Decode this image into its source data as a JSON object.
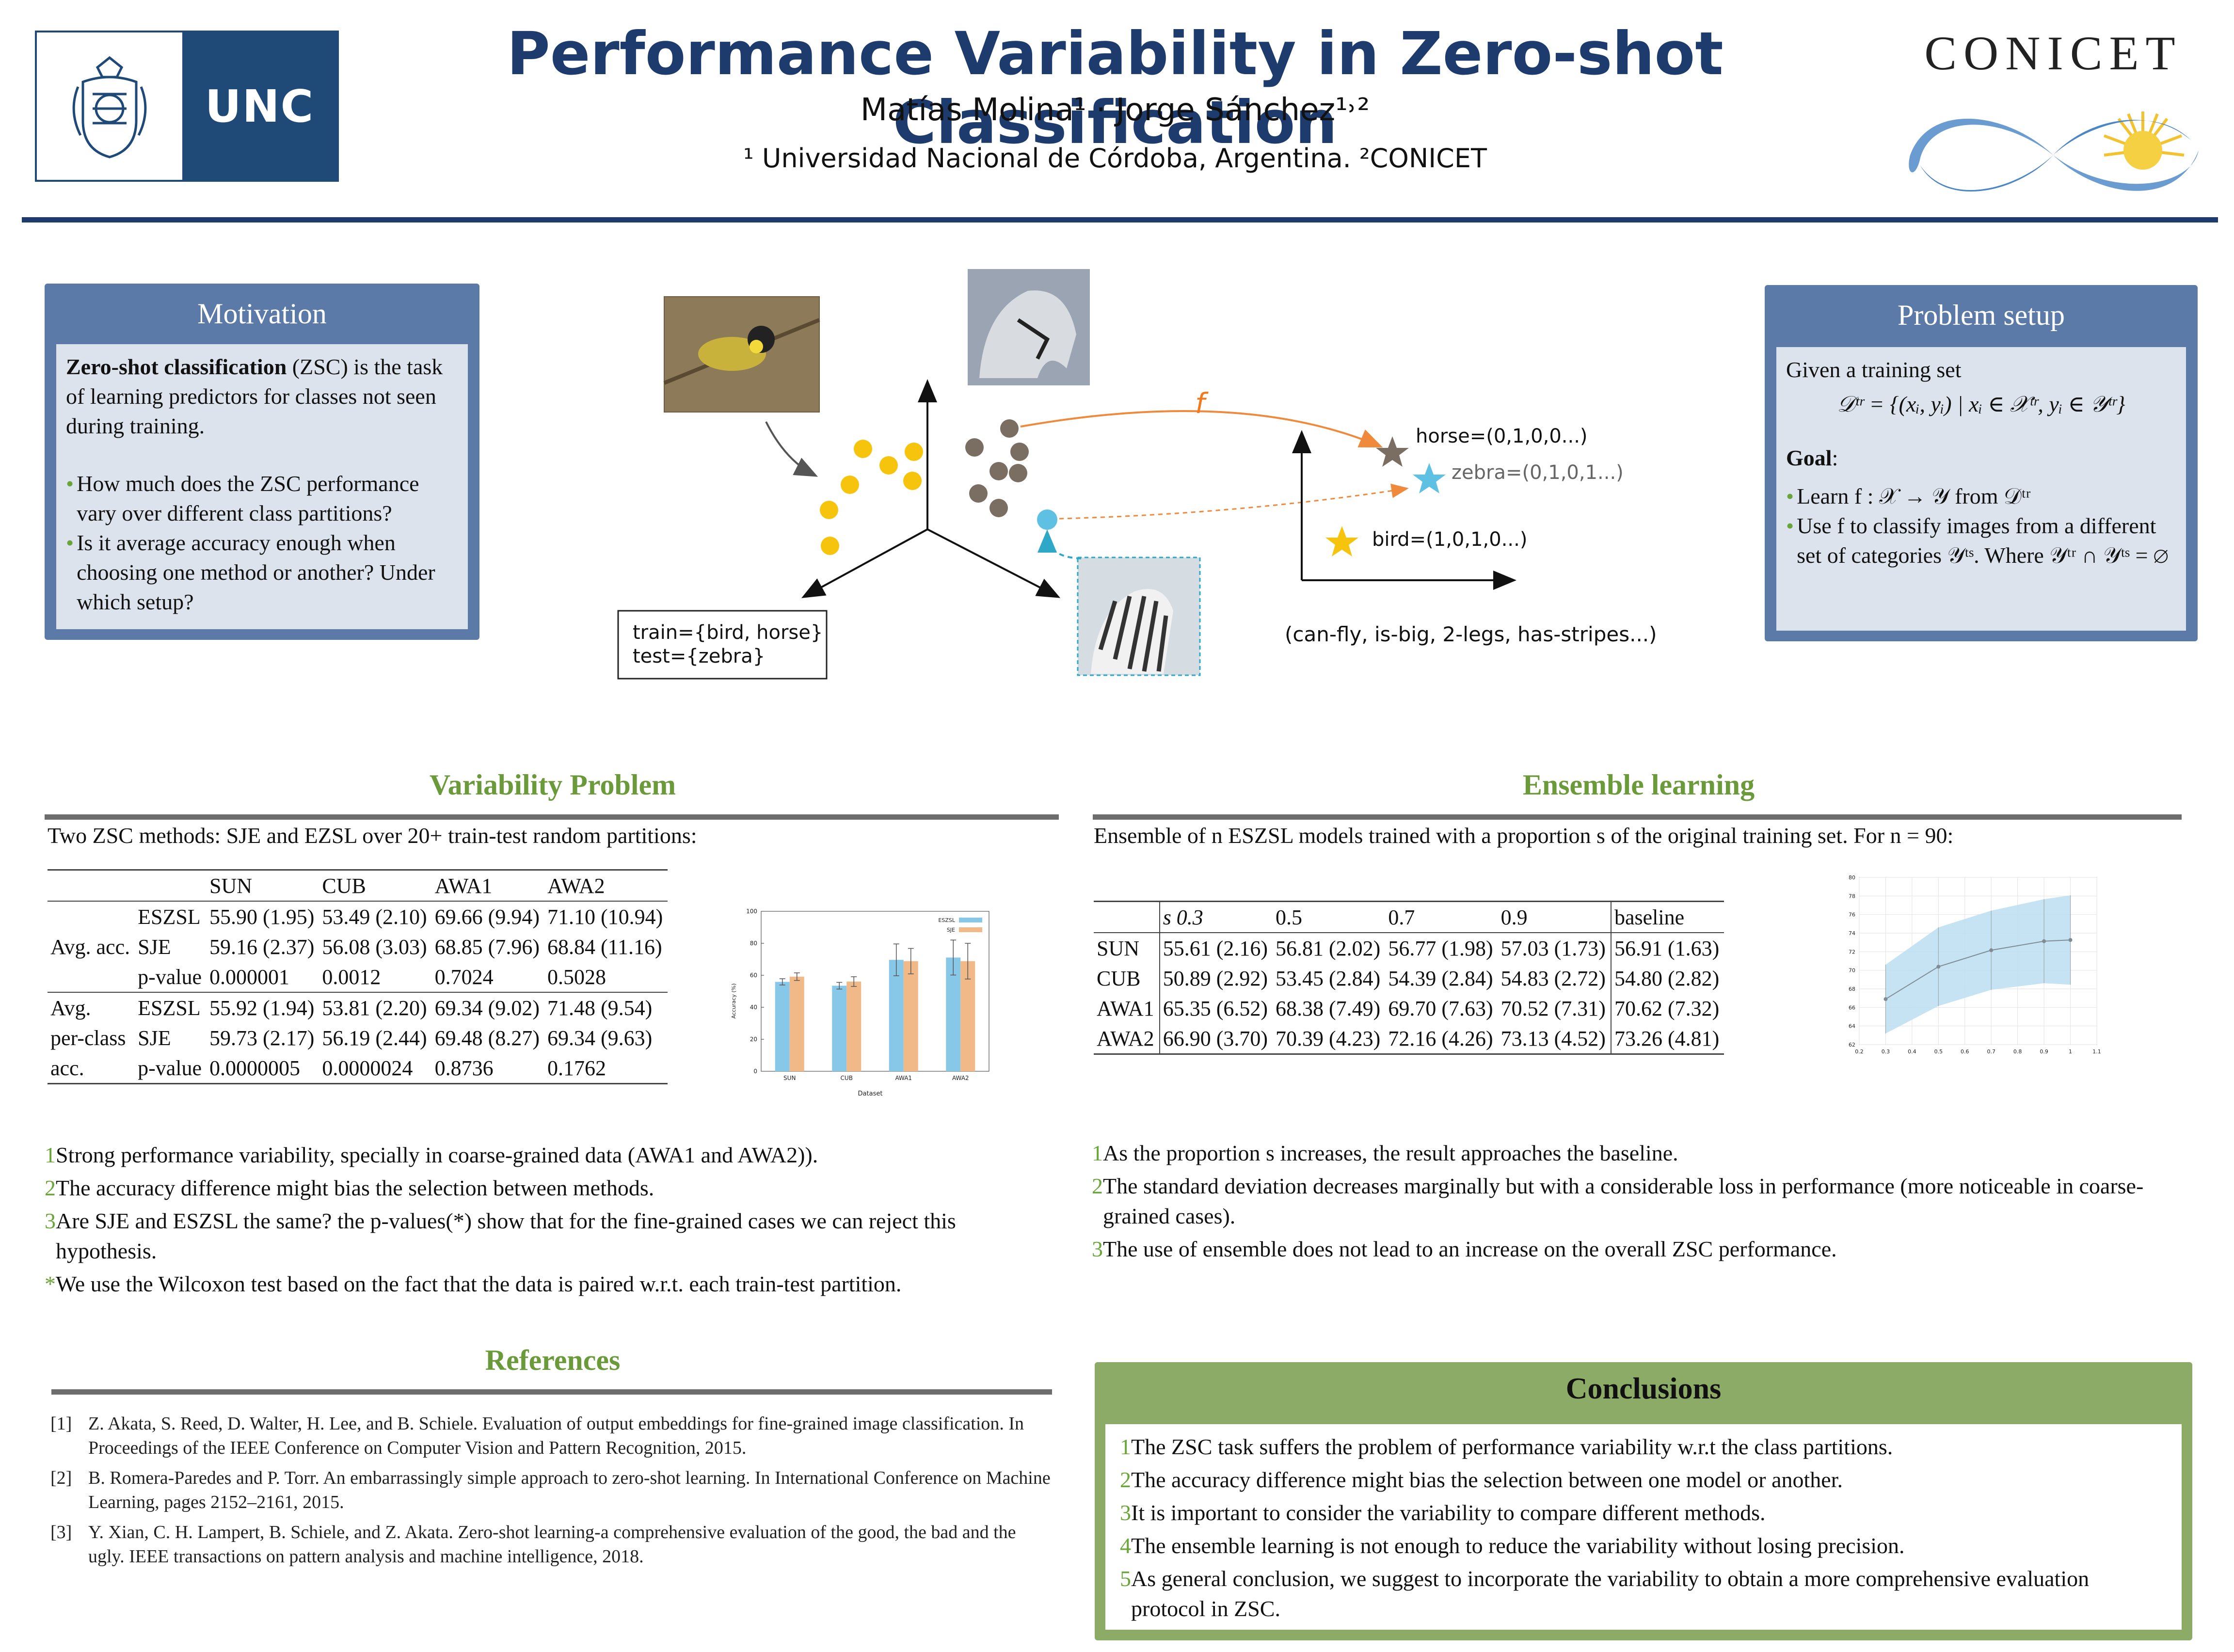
{
  "header": {
    "unc_logo_text": "UNC",
    "title": "Performance Variability in Zero-shot Classification",
    "authors": "Matías Molina¹ · Jorge Sánchez¹˒²",
    "affiliation": "¹ Universidad Nacional de Córdoba, Argentina. ²CONICET",
    "conicet_logo_text": "CONICET"
  },
  "motivation": {
    "title": "Motivation",
    "lead_bold": "Zero-shot classification",
    "lead_rest": " (ZSC) is the task of learning predictors for classes not seen during training.",
    "bullets": [
      "How much does the ZSC performance vary over different class partitions?",
      "Is it average accuracy enough when choosing one method or another? Under which setup?"
    ]
  },
  "diagram": {
    "f_label": "f",
    "train_test_1": "train={bird, horse}",
    "train_test_2": "test={zebra}",
    "horse_label": "horse=(0,1,0,0...)",
    "zebra_label": "zebra=(0,1,0,1...)",
    "bird_label": "bird=(1,0,1,0...)",
    "attributes": "(can-fly, is-big, 2-legs, has-stripes...)"
  },
  "problem_setup": {
    "title": "Problem setup",
    "given": "Given a training set",
    "formula": "𝒟ᵗʳ = {(xᵢ, yᵢ) | xᵢ ∈ 𝒳ᵗʳ, yᵢ ∈ 𝒴ᵗʳ}",
    "goal": "Goal",
    "bullet1": "Learn f : 𝒳 → 𝒴 from 𝒟ᵗʳ",
    "bullet2": "Use f to classify images from a different set of categories 𝒴ᵗˢ. Where 𝒴ᵗʳ ∩ 𝒴ᵗˢ = ∅"
  },
  "variability": {
    "title": "Variability Problem",
    "intro": "Two ZSC methods: SJE and EZSL over 20+ train-test random partitions:",
    "columns": [
      "SUN",
      "CUB",
      "AWA1",
      "AWA2"
    ],
    "avg_acc_label": "Avg. acc.",
    "avg_pc_label1": "Avg.",
    "avg_pc_label2": "per-class",
    "avg_pc_label3": "acc.",
    "avg_acc": [
      {
        "method": "ESZSL",
        "cells": [
          "55.90 (1.95)",
          "53.49 (2.10)",
          "69.66 (9.94)",
          "71.10 (10.94)"
        ]
      },
      {
        "method": "SJE",
        "cells": [
          "59.16 (2.37)",
          "56.08 (3.03)",
          "68.85 (7.96)",
          "68.84 (11.16)"
        ]
      },
      {
        "method": "p-value",
        "cells": [
          "0.000001",
          "0.0012",
          "0.7024",
          "0.5028"
        ]
      }
    ],
    "avg_pc": [
      {
        "method": "ESZSL",
        "cells": [
          "55.92 (1.94)",
          "53.81 (2.20)",
          "69.34 (9.02)",
          "71.48 (9.54)"
        ]
      },
      {
        "method": "SJE",
        "cells": [
          "59.73 (2.17)",
          "56.19 (2.44)",
          "69.48 (8.27)",
          "69.34 (9.63)"
        ]
      },
      {
        "method": "p-value",
        "cells": [
          "0.0000005",
          "0.0000024",
          "0.8736",
          "0.1762"
        ]
      }
    ],
    "points": [
      {
        "n": "1",
        "text": "Strong performance variability, specially in coarse-grained data (AWA1 and AWA2))."
      },
      {
        "n": "2",
        "text": "The accuracy difference might bias the selection between methods."
      },
      {
        "n": "3",
        "text": "Are SJE and ESZSL the same? the p-values(*) show that for the fine-grained cases we can reject this hypothesis."
      },
      {
        "n": "*",
        "text": "We use the Wilcoxon test based on the fact that the data is paired w.r.t. each train-test partition."
      }
    ]
  },
  "ensemble": {
    "title": "Ensemble learning",
    "intro": "Ensemble of n ESZSL models trained with a proportion s of the original training set. For n = 90:",
    "columns": [
      "s 0.3",
      "0.5",
      "0.7",
      "0.9",
      "baseline"
    ],
    "rows": [
      {
        "name": "SUN",
        "cells": [
          "55.61 (2.16)",
          "56.81 (2.02)",
          "56.77 (1.98)",
          "57.03 (1.73)",
          "56.91 (1.63)"
        ]
      },
      {
        "name": "CUB",
        "cells": [
          "50.89 (2.92)",
          "53.45 (2.84)",
          "54.39 (2.84)",
          "54.83 (2.72)",
          "54.80 (2.82)"
        ]
      },
      {
        "name": "AWA1",
        "cells": [
          "65.35 (6.52)",
          "68.38 (7.49)",
          "69.70 (7.63)",
          "70.52 (7.31)",
          "70.62 (7.32)"
        ]
      },
      {
        "name": "AWA2",
        "cells": [
          "66.90 (3.70)",
          "70.39 (4.23)",
          "72.16 (4.26)",
          "73.13 (4.52)",
          "73.26 (4.81)"
        ]
      }
    ],
    "points": [
      {
        "n": "1",
        "text": "As the proportion s increases, the result approaches the baseline."
      },
      {
        "n": "2",
        "text": "The standard deviation decreases marginally but with a considerable loss in performance (more noticeable in coarse-grained cases)."
      },
      {
        "n": "3",
        "text": "The use of ensemble does not lead to an increase on the overall ZSC performance."
      }
    ]
  },
  "references": {
    "title": "References",
    "items": [
      {
        "n": "[1]",
        "text": "Z. Akata, S. Reed, D. Walter, H. Lee, and B. Schiele. Evaluation of output embeddings for fine-grained image classification. In Proceedings of the IEEE Conference on Computer Vision and Pattern Recognition, 2015."
      },
      {
        "n": "[2]",
        "text": "B. Romera-Paredes and P. Torr. An embarrassingly simple approach to zero-shot learning. In International Conference on Machine Learning, pages 2152–2161, 2015."
      },
      {
        "n": "[3]",
        "text": "Y. Xian, C. H. Lampert, B. Schiele, and Z. Akata. Zero-shot learning-a comprehensive evaluation of the good, the bad and the ugly. IEEE transactions on pattern analysis and machine intelligence, 2018."
      }
    ]
  },
  "conclusions": {
    "title": "Conclusions",
    "points": [
      {
        "n": "1",
        "text": "The ZSC task suffers the problem of performance variability w.r.t the class partitions."
      },
      {
        "n": "2",
        "text": "The accuracy difference might bias the selection between one model or another."
      },
      {
        "n": "3",
        "text": "It is important to consider the variability to compare different methods."
      },
      {
        "n": "4",
        "text": "The ensemble learning is not enough to reduce the variability without losing precision."
      },
      {
        "n": "5",
        "text": "As general conclusion, we suggest to incorporate the variability to obtain a more comprehensive evaluation protocol in ZSC."
      }
    ]
  },
  "chart_data": [
    {
      "type": "bar",
      "categories": [
        "SUN",
        "CUB",
        "AWA1",
        "AWA2"
      ],
      "series": [
        {
          "name": "ESZSL",
          "values": [
            55.9,
            53.49,
            69.66,
            71.1
          ],
          "errors": [
            1.95,
            2.1,
            9.94,
            10.94
          ],
          "color": "#87c8e8"
        },
        {
          "name": "SJE",
          "values": [
            59.16,
            56.08,
            68.85,
            68.84
          ],
          "errors": [
            2.37,
            3.03,
            7.96,
            11.16
          ],
          "color": "#f0b987"
        }
      ],
      "xlabel": "Dataset",
      "ylabel": "Accuracy (%)",
      "ylim": [
        0,
        100
      ],
      "yticks": [
        0,
        20,
        40,
        60,
        80,
        100
      ],
      "legend": "top-right"
    },
    {
      "type": "line",
      "x": [
        0.3,
        0.5,
        0.7,
        0.9,
        1.0
      ],
      "y": [
        66.9,
        70.39,
        72.16,
        73.13,
        73.26
      ],
      "err": [
        3.7,
        4.23,
        4.26,
        4.52,
        4.81
      ],
      "xlim": [
        0.2,
        1.1
      ],
      "ylim": [
        62,
        80
      ],
      "xticks": [
        0.2,
        0.3,
        0.4,
        0.5,
        0.6,
        0.7,
        0.8,
        0.9,
        1,
        1.1
      ],
      "yticks": [
        62,
        64,
        66,
        68,
        70,
        72,
        74,
        76,
        78,
        80
      ],
      "band_color": "#bfe0f2",
      "line_color": "#7f8c96",
      "grid": true
    }
  ]
}
